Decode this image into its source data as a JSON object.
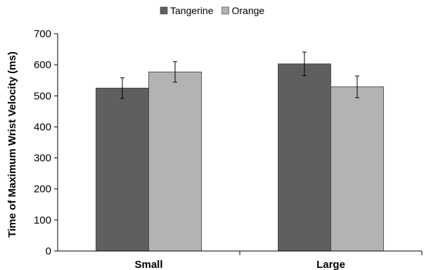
{
  "chart_data": {
    "type": "bar",
    "title": "",
    "xlabel": "",
    "ylabel": "Time of Maximum Wrist Velocity (ms)",
    "ylim": [
      0,
      700
    ],
    "yticks": [
      0,
      100,
      200,
      300,
      400,
      500,
      600,
      700
    ],
    "categories": [
      "Small",
      "Large"
    ],
    "series": [
      {
        "name": "Tangerine",
        "color": "#5f5f5f",
        "values": [
          525,
          603
        ],
        "errors": [
          33,
          38
        ]
      },
      {
        "name": "Orange",
        "color": "#b3b3b3",
        "values": [
          577,
          529
        ],
        "errors": [
          33,
          35
        ]
      }
    ],
    "legend": "top-center",
    "grid": false,
    "error_bars": true
  }
}
